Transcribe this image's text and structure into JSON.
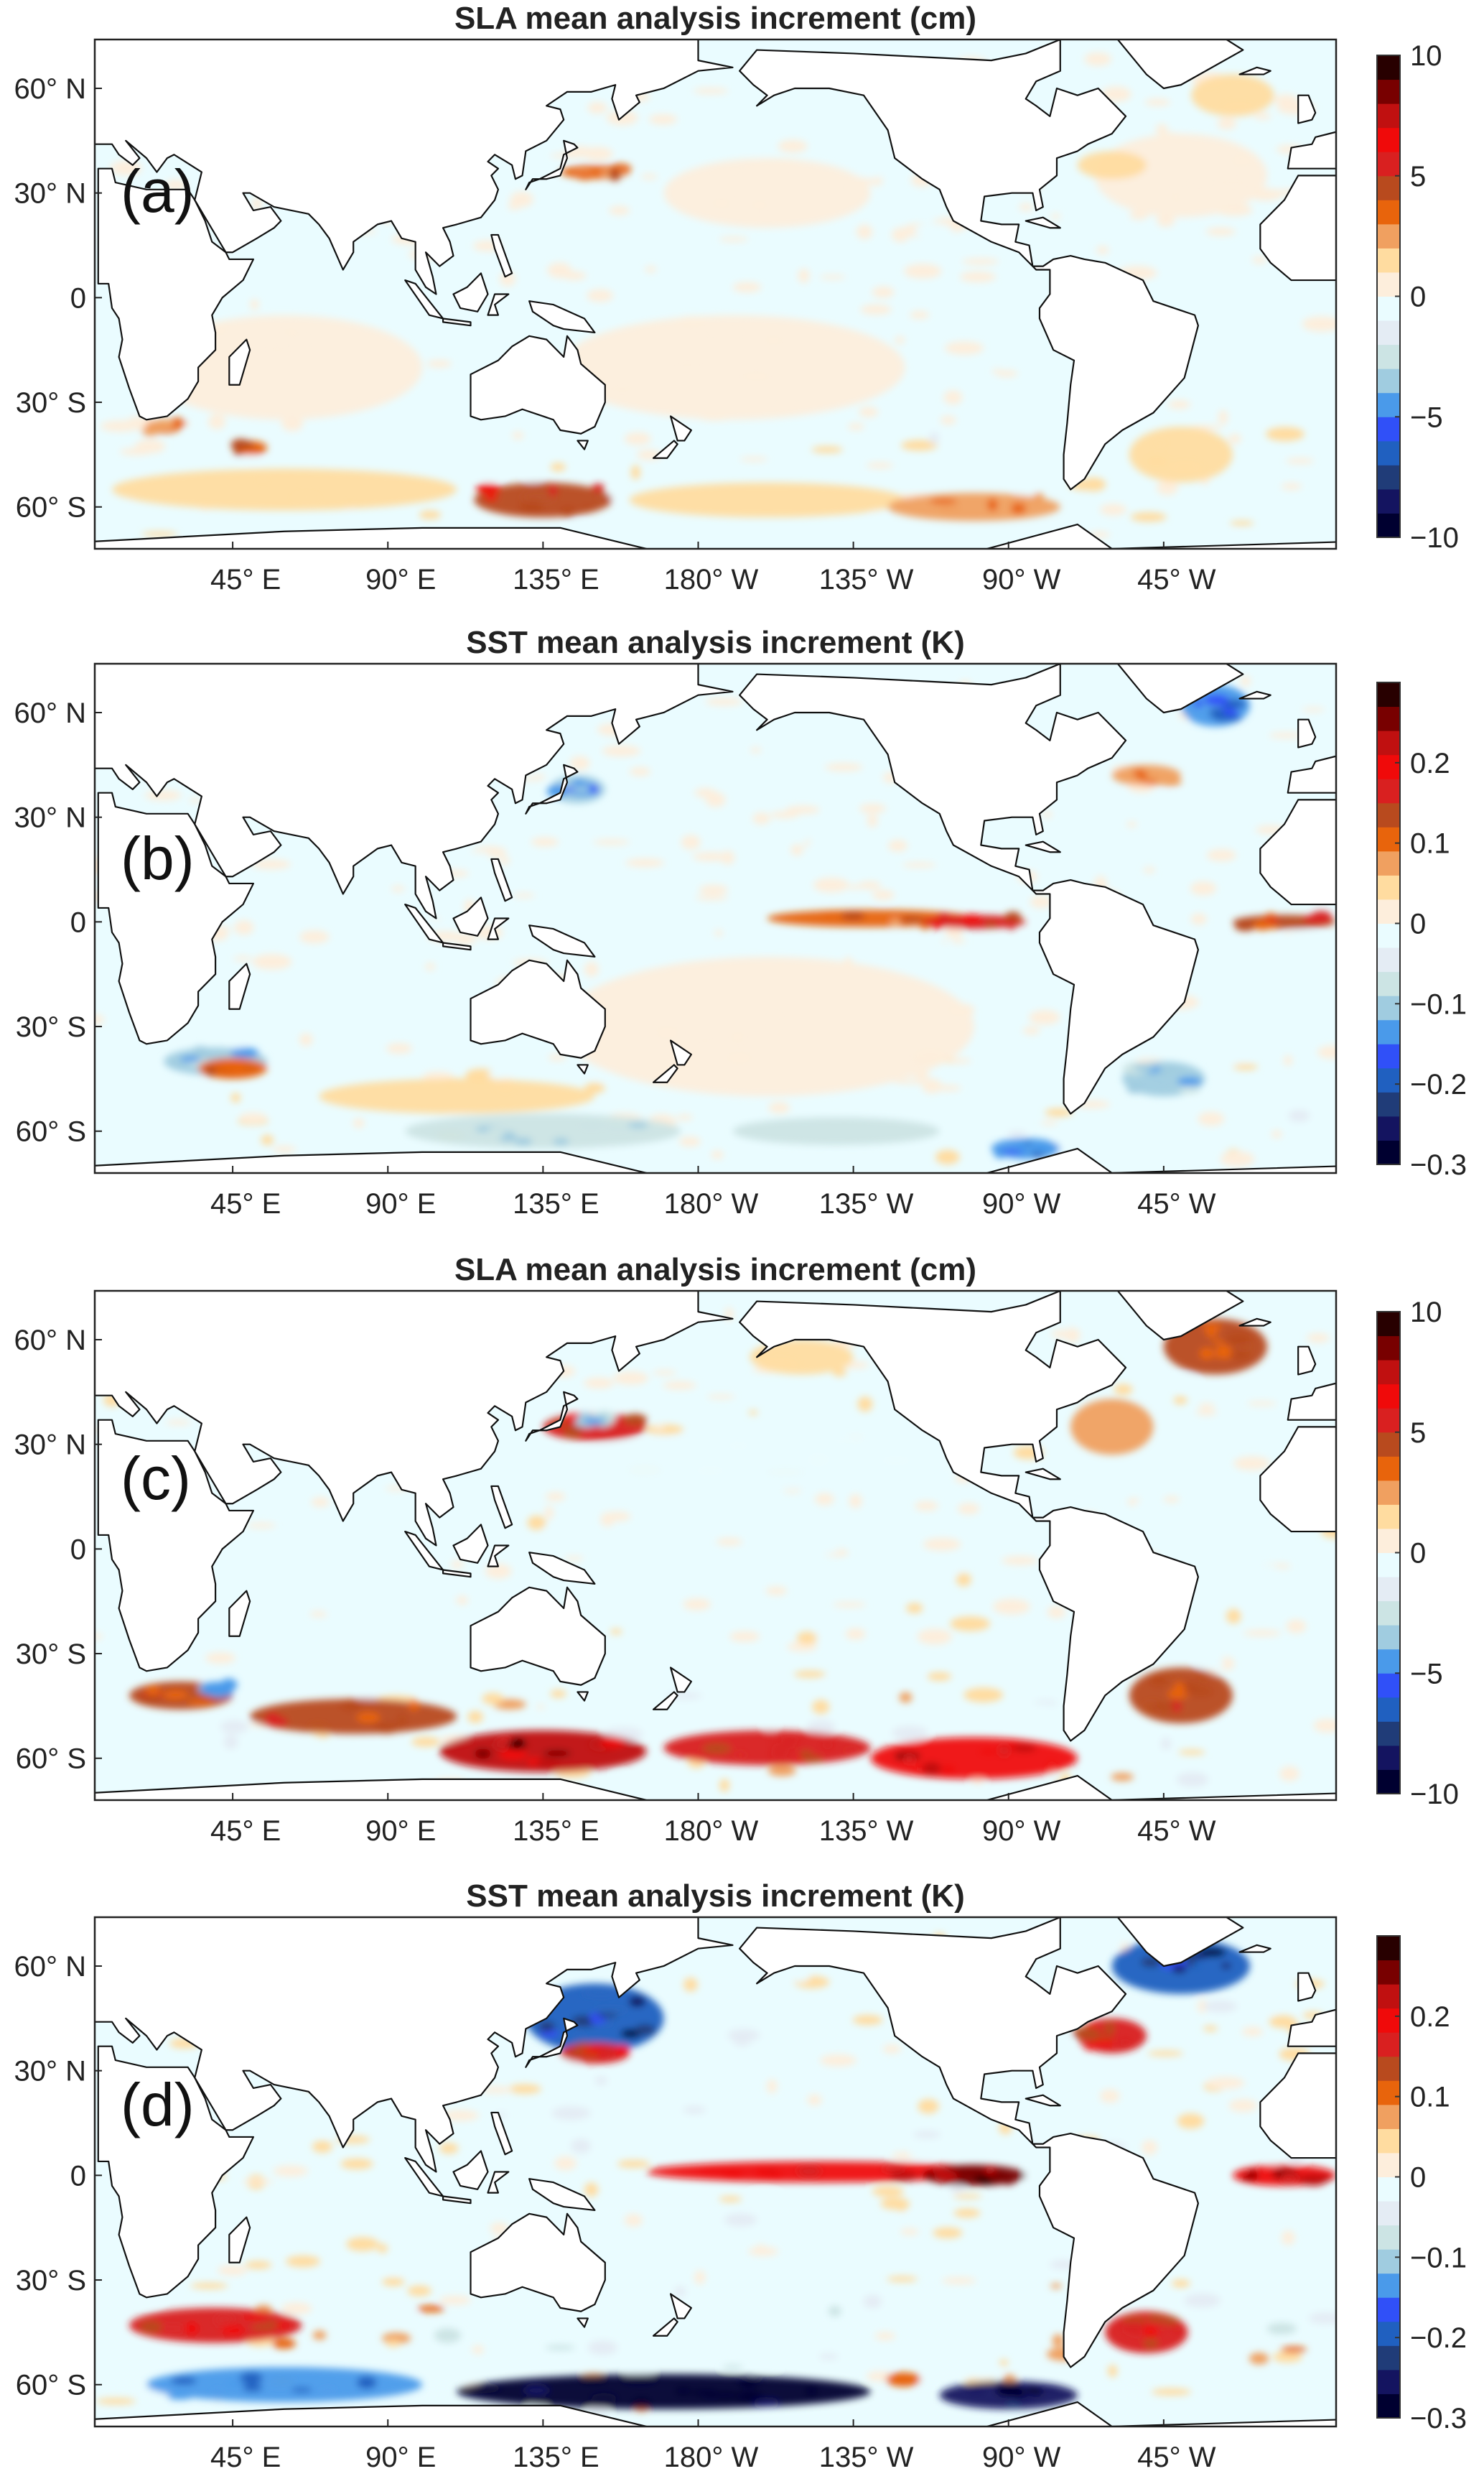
{
  "chart_data": [
    {
      "type": "heatmap",
      "panel_label": "(a)",
      "title": "SLA mean analysis increment (cm)",
      "colorbar": {
        "range": [
          -10,
          10
        ],
        "levels": 20,
        "ticks": [
          10,
          5,
          0,
          -5,
          -10
        ],
        "tick_labels": [
          "10",
          "5",
          "0",
          "−5",
          "−10"
        ]
      },
      "features": [
        [
          60,
          -20,
          40,
          15,
          0.8
        ],
        [
          200,
          30,
          30,
          10,
          0.8
        ],
        [
          190,
          -20,
          50,
          15,
          0.8
        ],
        [
          320,
          35,
          25,
          12,
          0.8
        ],
        [
          60,
          -55,
          50,
          6,
          1.5
        ],
        [
          135,
          -58,
          20,
          5,
          4.5
        ],
        [
          200,
          -58,
          40,
          5,
          1.8
        ],
        [
          260,
          -60,
          25,
          4,
          2.5
        ],
        [
          320,
          -45,
          15,
          8,
          1.5
        ],
        [
          25,
          -37,
          5,
          2,
          3
        ],
        [
          50,
          -43,
          5,
          2,
          3.5
        ],
        [
          150,
          36,
          10,
          2,
          3
        ],
        [
          335,
          58,
          12,
          6,
          1.5
        ],
        [
          300,
          38,
          10,
          4,
          1.5
        ]
      ]
    },
    {
      "type": "heatmap",
      "panel_label": "(b)",
      "title": "SST mean analysis increment (K)",
      "colorbar": {
        "range": [
          -0.3,
          0.3
        ],
        "levels": 20,
        "ticks": [
          0.2,
          0.1,
          0,
          -0.1,
          -0.2,
          -0.3
        ],
        "tick_labels": [
          "0.2",
          "0.1",
          "0",
          "−0.1",
          "−0.2",
          "−0.3"
        ]
      },
      "features": [
        [
          200,
          -30,
          60,
          20,
          0.02
        ],
        [
          110,
          -50,
          40,
          5,
          0.04
        ],
        [
          230,
          1,
          30,
          2.5,
          0.1
        ],
        [
          260,
          0,
          15,
          2,
          0.15
        ],
        [
          350,
          0,
          15,
          2,
          0.12
        ],
        [
          40,
          -40,
          15,
          4,
          -0.1
        ],
        [
          45,
          -42,
          10,
          3,
          0.1
        ],
        [
          135,
          -60,
          40,
          5,
          -0.08
        ],
        [
          220,
          -60,
          30,
          4,
          -0.07
        ],
        [
          275,
          -65,
          10,
          3,
          -0.15
        ],
        [
          315,
          -45,
          12,
          5,
          -0.1
        ],
        [
          145,
          38,
          8,
          4,
          -0.12
        ],
        [
          330,
          62,
          10,
          6,
          -0.15
        ],
        [
          310,
          42,
          10,
          3,
          0.08
        ]
      ]
    },
    {
      "type": "heatmap",
      "panel_label": "(c)",
      "title": "SLA mean analysis increment (cm)",
      "colorbar": {
        "range": [
          -10,
          10
        ],
        "levels": 20,
        "ticks": [
          10,
          5,
          0,
          -5,
          -10
        ],
        "tick_labels": [
          "10",
          "5",
          "0",
          "−5",
          "−10"
        ]
      },
      "features": [
        [
          200,
          25,
          60,
          8,
          -0.8
        ],
        [
          210,
          55,
          15,
          5,
          1.2
        ],
        [
          300,
          35,
          12,
          8,
          2
        ],
        [
          150,
          35,
          15,
          4,
          5
        ],
        [
          135,
          -58,
          30,
          6,
          7
        ],
        [
          80,
          -48,
          30,
          5,
          4
        ],
        [
          200,
          -57,
          30,
          5,
          5
        ],
        [
          260,
          -60,
          30,
          6,
          6
        ],
        [
          320,
          -42,
          15,
          8,
          4
        ],
        [
          30,
          -42,
          15,
          4,
          4
        ],
        [
          330,
          58,
          15,
          8,
          4
        ],
        [
          40,
          -40,
          5,
          2,
          -4
        ],
        [
          150,
          37,
          4,
          1.5,
          -3
        ]
      ]
    },
    {
      "type": "heatmap",
      "panel_label": "(d)",
      "title": "SST mean analysis increment (K)",
      "colorbar": {
        "range": [
          -0.3,
          0.3
        ],
        "levels": 20,
        "ticks": [
          0.2,
          0.1,
          0,
          -0.1,
          -0.2,
          -0.3
        ],
        "tick_labels": [
          "0.2",
          "0.1",
          "0",
          "−0.1",
          "−0.2",
          "−0.3"
        ]
      },
      "features": [
        [
          60,
          -60,
          40,
          5,
          -0.15
        ],
        [
          215,
          1,
          50,
          3,
          0.18
        ],
        [
          260,
          0,
          15,
          3,
          0.25
        ],
        [
          350,
          0,
          15,
          3,
          0.2
        ],
        [
          150,
          45,
          20,
          10,
          -0.2
        ],
        [
          320,
          60,
          20,
          8,
          -0.2
        ],
        [
          170,
          -62,
          60,
          5,
          -0.28
        ],
        [
          270,
          -63,
          20,
          4,
          -0.25
        ],
        [
          40,
          -43,
          25,
          5,
          0.15
        ],
        [
          310,
          -45,
          12,
          6,
          0.15
        ],
        [
          300,
          40,
          10,
          5,
          0.15
        ],
        [
          150,
          35,
          10,
          3,
          0.15
        ]
      ]
    }
  ],
  "axes": {
    "lat_ticks": [
      60,
      30,
      0,
      -30,
      -60
    ],
    "lat_labels": [
      "60° N",
      "30° N",
      "0",
      "30° S",
      "60° S"
    ],
    "lon_ticks": [
      45,
      90,
      135,
      180,
      225,
      270,
      315
    ],
    "lon_labels": [
      "45° E",
      "90° E",
      "135° E",
      "180° W",
      "135° W",
      "90° W",
      "45° W"
    ]
  },
  "colormap": [
    "#000030",
    "#141460",
    "#203c78",
    "#2060c0",
    "#3050f8",
    "#4a9aea",
    "#a0cce0",
    "#cce4e4",
    "#e4ecf4",
    "#eafcff",
    "#fdeedc",
    "#ffdca0",
    "#f0a060",
    "#e8640c",
    "#b84a1e",
    "#d92020",
    "#f00a0a",
    "#c01010",
    "#780000",
    "#280000"
  ],
  "land_color": "#ffffff",
  "coast_color": "#111111"
}
